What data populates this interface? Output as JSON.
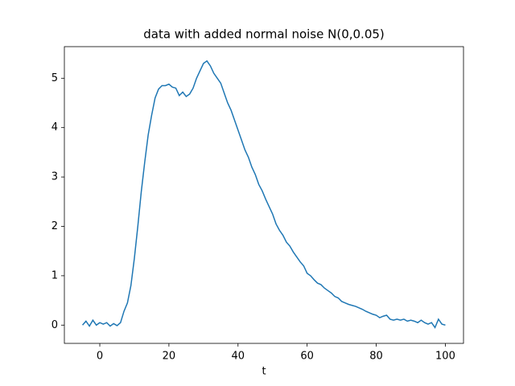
{
  "chart_data": {
    "type": "line",
    "title": "data with added normal noise N(0,0.05)",
    "xlabel": "t",
    "x": [
      -5,
      -4,
      -3,
      -2,
      -1,
      0,
      1,
      2,
      3,
      4,
      5,
      6,
      7,
      8,
      9,
      10,
      11,
      12,
      13,
      14,
      15,
      16,
      17,
      18,
      19,
      20,
      21,
      22,
      23,
      24,
      25,
      26,
      27,
      28,
      29,
      30,
      31,
      32,
      33,
      34,
      35,
      36,
      37,
      38,
      39,
      40,
      41,
      42,
      43,
      44,
      45,
      46,
      47,
      48,
      49,
      50,
      51,
      52,
      53,
      54,
      55,
      56,
      57,
      58,
      59,
      60,
      61,
      62,
      63,
      64,
      65,
      66,
      67,
      68,
      69,
      70,
      71,
      72,
      73,
      74,
      75,
      76,
      77,
      78,
      79,
      80,
      81,
      82,
      83,
      84,
      85,
      86,
      87,
      88,
      89,
      90,
      91,
      92,
      93,
      94,
      95,
      96,
      97,
      98,
      99,
      100
    ],
    "series": [
      {
        "color": "#1f77b4",
        "values": [
          0.0,
          0.08,
          -0.02,
          0.1,
          0.0,
          0.05,
          0.02,
          0.05,
          -0.02,
          0.03,
          -0.01,
          0.05,
          0.28,
          0.45,
          0.8,
          1.35,
          2.0,
          2.7,
          3.3,
          3.85,
          4.25,
          4.6,
          4.78,
          4.85,
          4.85,
          4.88,
          4.82,
          4.8,
          4.65,
          4.72,
          4.63,
          4.68,
          4.8,
          5.0,
          5.15,
          5.3,
          5.35,
          5.25,
          5.1,
          5.0,
          4.9,
          4.7,
          4.5,
          4.35,
          4.15,
          3.95,
          3.75,
          3.55,
          3.4,
          3.2,
          3.05,
          2.85,
          2.72,
          2.55,
          2.4,
          2.25,
          2.05,
          1.92,
          1.82,
          1.68,
          1.6,
          1.48,
          1.38,
          1.28,
          1.2,
          1.05,
          1.0,
          0.92,
          0.85,
          0.82,
          0.75,
          0.7,
          0.65,
          0.58,
          0.55,
          0.48,
          0.45,
          0.42,
          0.4,
          0.38,
          0.35,
          0.32,
          0.28,
          0.25,
          0.22,
          0.2,
          0.15,
          0.18,
          0.2,
          0.12,
          0.1,
          0.12,
          0.1,
          0.12,
          0.08,
          0.1,
          0.08,
          0.05,
          0.1,
          0.05,
          0.02,
          0.05,
          -0.05,
          0.12,
          0.02,
          0.0
        ]
      }
    ],
    "xlim": [
      -10.25,
      105.25
    ],
    "ylim": [
      -0.37,
      5.64
    ],
    "xticks": [
      0,
      20,
      40,
      60,
      80,
      100
    ],
    "yticks": [
      0,
      1,
      2,
      3,
      4,
      5
    ],
    "grid": false
  }
}
